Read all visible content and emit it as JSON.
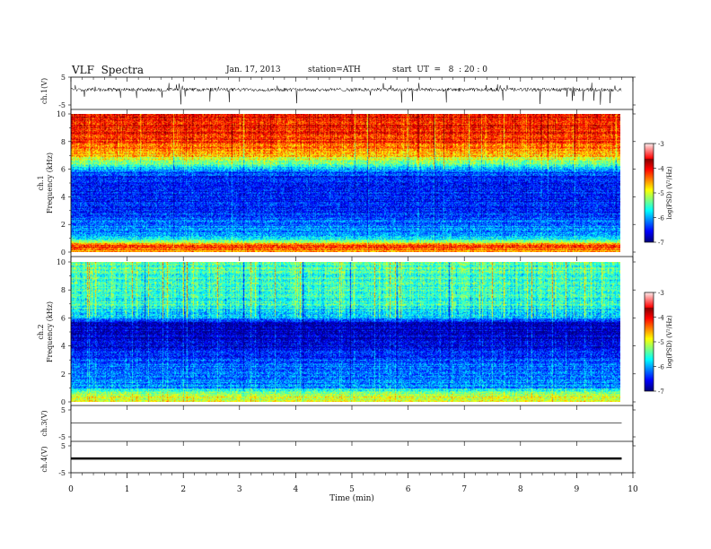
{
  "header": {
    "title": "VLF  Spectra",
    "date": "Jan. 17, 2013",
    "station": "station=ATH",
    "start": "start  UT  =   8  : 20 : 0"
  },
  "chart_data": [
    {
      "type": "line",
      "title": "",
      "ylabel": "ch.1(V)",
      "ylim": [
        -5,
        5
      ],
      "yticks": [
        "5",
        "-5"
      ],
      "signal": "noisy waveform centered near 0.5 V with sporadic spikes to about -5 and +3"
    },
    {
      "type": "heatmap",
      "ylabel_line1": "ch.1",
      "ylabel_line2": "Frequency  (kHz)",
      "ylim": [
        0,
        10
      ],
      "yticks": [
        "0",
        "2",
        "4",
        "6",
        "8",
        "10"
      ],
      "colorbar": {
        "label": "log(PSD) (V²/Hz)",
        "range": [
          -7,
          -3
        ],
        "ticks": [
          "-7",
          "-6",
          "-5",
          "-4",
          "-3"
        ]
      },
      "frequency_profile_kHz_logPSD": [
        [
          0,
          -4.2
        ],
        [
          0.4,
          -3.6
        ],
        [
          1,
          -5.8
        ],
        [
          2,
          -6.0
        ],
        [
          3,
          -6.3
        ],
        [
          4,
          -6.4
        ],
        [
          5,
          -6.5
        ],
        [
          5.8,
          -6.2
        ],
        [
          6.3,
          -5.2
        ],
        [
          7,
          -4.3
        ],
        [
          8,
          -3.7
        ],
        [
          10,
          -3.5
        ]
      ]
    },
    {
      "type": "heatmap",
      "ylabel_line1": "ch.2",
      "ylabel_line2": "Frequency  (kHz)",
      "ylim": [
        0,
        10
      ],
      "yticks": [
        "0",
        "2",
        "4",
        "6",
        "8",
        "10"
      ],
      "colorbar": {
        "label": "log(PSD) (V²/Hz)",
        "range": [
          -7,
          -3
        ],
        "ticks": [
          "-7",
          "-6",
          "-5",
          "-4",
          "-3"
        ]
      },
      "frequency_profile_kHz_logPSD": [
        [
          0,
          -4.5
        ],
        [
          0.5,
          -4.8
        ],
        [
          1,
          -5.9
        ],
        [
          2,
          -6.1
        ],
        [
          3,
          -6.2
        ],
        [
          4,
          -6.6
        ],
        [
          5,
          -6.7
        ],
        [
          5.6,
          -6.8
        ],
        [
          6,
          -5.8
        ],
        [
          7,
          -5.3
        ],
        [
          8,
          -5.3
        ],
        [
          10,
          -5.2
        ]
      ]
    },
    {
      "type": "line",
      "ylabel": "ch.3(V)",
      "ylim": [
        -5,
        5
      ],
      "yticks": [
        "5",
        "-5"
      ],
      "level": 0.1
    },
    {
      "type": "line",
      "ylabel": "ch.4(V)",
      "ylim": [
        -5,
        5
      ],
      "yticks": [
        "5",
        "-5"
      ],
      "level": 0.3
    }
  ],
  "xaxis": {
    "label": "Time  (min)",
    "range": [
      0,
      10
    ],
    "ticks": [
      "0",
      "1",
      "2",
      "3",
      "4",
      "5",
      "6",
      "7",
      "8",
      "9",
      "10"
    ],
    "data_end": 9.8
  }
}
